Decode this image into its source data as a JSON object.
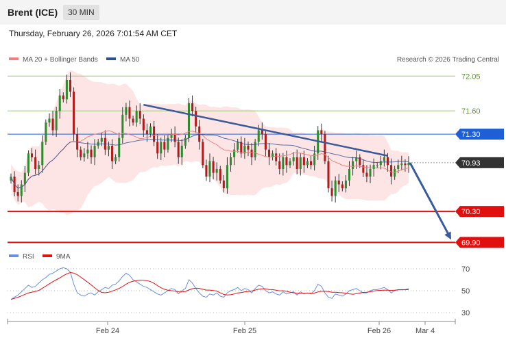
{
  "header": {
    "title": "Brent (ICE)",
    "timeframe": "30 MIN",
    "timestamp": "Thursday, February 26, 2026 7:01:54 AM CET"
  },
  "legend": {
    "ma20_bb": "MA 20 + Bollinger Bands",
    "ma50": "MA 50",
    "copyright": "Research © 2026 Trading Central",
    "rsi": "RSI",
    "rsi_ma": "9MA"
  },
  "colors": {
    "ma20": "#f08080",
    "ma50": "#2b4f8f",
    "bands_fill": "#fde2e2",
    "up": "#2e8b2e",
    "down": "#b01c1c",
    "resistance_green": "#9ccc7a",
    "pivot_blue": "#1f5fd6",
    "support_red": "#e01010",
    "trendline": "#3a5a9a",
    "rsi_line": "#6a8ee0",
    "rsi_ma": "#e01010"
  },
  "chart_data": [
    {
      "type": "candlestick",
      "x_ticks": [
        "Feb 24",
        "Feb 25",
        "Feb 26",
        "Mar 4"
      ],
      "ylim": [
        69.85,
        72.15
      ],
      "price_levels": [
        {
          "price": 72.05,
          "label": "72.05",
          "style": "green"
        },
        {
          "price": 71.6,
          "label": "71.60",
          "style": "green"
        },
        {
          "price": 71.3,
          "label": "71.30",
          "style": "blue"
        },
        {
          "price": 70.93,
          "label": "70.93",
          "style": "current"
        },
        {
          "price": 70.3,
          "label": "70.30",
          "style": "red"
        },
        {
          "price": 69.9,
          "label": "69.90",
          "style": "red"
        }
      ],
      "closes": [
        70.75,
        70.55,
        70.5,
        70.65,
        70.8,
        71.05,
        71.0,
        70.85,
        70.9,
        71.2,
        71.45,
        71.5,
        71.35,
        71.6,
        71.8,
        71.75,
        72.0,
        71.85,
        71.3,
        71.1,
        71.0,
        71.05,
        71.1,
        71.0,
        71.15,
        71.2,
        71.25,
        71.1,
        71.15,
        70.95,
        71.0,
        71.25,
        71.55,
        71.65,
        71.5,
        71.45,
        71.6,
        71.5,
        71.35,
        71.3,
        71.4,
        71.2,
        71.05,
        71.2,
        71.1,
        71.25,
        71.3,
        71.2,
        71.0,
        71.15,
        71.25,
        71.7,
        71.6,
        71.4,
        71.2,
        70.9,
        70.75,
        70.95,
        70.8,
        70.85,
        70.7,
        70.6,
        70.9,
        71.0,
        71.1,
        71.2,
        71.05,
        71.15,
        71.1,
        71.0,
        71.2,
        71.35,
        71.3,
        71.1,
        71.0,
        71.05,
        70.95,
        70.85,
        71.0,
        70.9,
        70.95,
        71.0,
        70.85,
        71.0,
        70.9,
        70.95,
        70.9,
        71.05,
        71.35,
        71.3,
        70.95,
        70.6,
        70.5,
        70.7,
        70.65,
        70.6,
        70.7,
        70.85,
        70.95,
        71.0,
        70.9,
        70.8,
        70.75,
        70.85,
        70.9,
        70.9,
        70.95,
        71.0,
        70.9,
        70.75,
        70.85,
        70.9,
        70.92,
        70.9,
        70.93
      ],
      "trendline": {
        "from": {
          "bar": 38,
          "price": 71.68
        },
        "to": {
          "bar": 108,
          "price": 71.02
        }
      },
      "projection": {
        "from": {
          "bar": 114,
          "price": 70.93
        },
        "to_price": 69.9
      }
    },
    {
      "type": "line",
      "name": "RSI",
      "y_ticks": [
        30,
        50,
        70
      ],
      "ylim": [
        25,
        75
      ],
      "values": [
        42,
        44,
        46,
        49,
        52,
        55,
        53,
        54,
        57,
        60,
        62,
        65,
        66,
        68,
        70,
        71,
        70,
        67,
        56,
        48,
        46,
        45,
        47,
        48,
        46,
        49,
        51,
        53,
        52,
        55,
        56,
        59,
        63,
        66,
        64,
        60,
        58,
        56,
        54,
        53,
        51,
        49,
        47,
        46,
        48,
        50,
        52,
        51,
        47,
        50,
        52,
        60,
        57,
        52,
        48,
        45,
        44,
        47,
        46,
        48,
        45,
        44,
        48,
        50,
        51,
        53,
        50,
        52,
        51,
        48,
        52,
        55,
        54,
        50,
        48,
        49,
        47,
        46,
        49,
        47,
        48,
        49,
        46,
        49,
        47,
        48,
        47,
        50,
        56,
        54,
        48,
        44,
        43,
        47,
        46,
        45,
        47,
        50,
        51,
        52,
        50,
        48,
        48,
        50,
        51,
        51,
        52,
        53,
        51,
        48,
        50,
        51,
        51,
        51,
        52
      ],
      "ma_name": "9MA"
    }
  ]
}
